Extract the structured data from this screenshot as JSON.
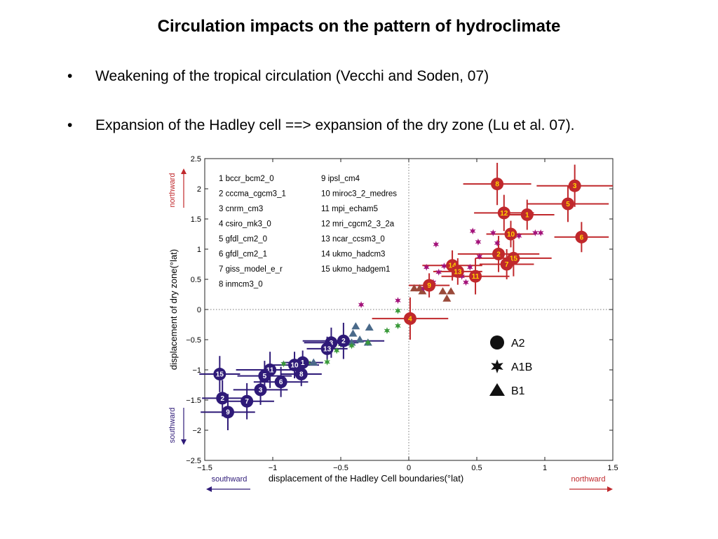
{
  "slide": {
    "title": "Circulation impacts on the pattern of hydroclimate",
    "bullets": [
      "Weakening of the tropical circulation (Vecchi and Soden, 07)",
      "Expansion of the Hadley cell ==> expansion of the dry zone (Lu et al. 07)."
    ],
    "bullet_glyph": "•"
  },
  "chart_data": {
    "type": "scatter",
    "title": "",
    "xlabel": "displacement of the Hadley Cell boundaries(°lat)",
    "ylabel": "displacement of dry zone(°lat)",
    "xlim": [
      -1.5,
      1.5
    ],
    "ylim": [
      -2.5,
      2.5
    ],
    "xticks": [
      -1.5,
      -1,
      -0.5,
      0,
      0.5,
      1,
      1.5
    ],
    "xtick_labels": [
      "−1.5",
      "−1",
      "−0.5",
      "0",
      "0.5",
      "1",
      "1.5"
    ],
    "yticks": [
      -2.5,
      -2,
      -1.5,
      -1,
      -0.5,
      0,
      0.5,
      1,
      1.5,
      2,
      2.5
    ],
    "ytick_labels": [
      "−2.5",
      "−2",
      "−1.5",
      "−1",
      "−0.5",
      "0",
      "0.5",
      "1",
      "1.5",
      "2",
      "2.5"
    ],
    "grid": false,
    "zero_lines": "dotted",
    "direction_labels": {
      "x_negative": "southward",
      "x_positive": "northward",
      "y_positive": "northward",
      "y_negative": "southward"
    },
    "colors": {
      "northward": "#c0282c",
      "southward": "#2e1a78",
      "a1b_north": "#a3127a",
      "a1b_south": "#3a9a3a",
      "b1_north": "#9a4a3a",
      "b1_south": "#4a6a8a",
      "label_north": "#ffd400",
      "label_south": "#ffffff"
    },
    "model_list": [
      "1 bccr_bcm2_0",
      "2 cccma_cgcm3_1",
      "3 cnrm_cm3",
      "4 csiro_mk3_0",
      "5 gfdl_cm2_0",
      "6 gfdl_cm2_1",
      "7 giss_model_e_r",
      "8 inmcm3_0",
      "9 ipsl_cm4",
      "10 miroc3_2_medres",
      "11 mpi_echam5",
      "12 mri_cgcm2_3_2a",
      "13 ncar_ccsm3_0",
      "14 ukmo_hadcm3",
      "15 ukmo_hadgem1"
    ],
    "legend": {
      "placement": "lower-right",
      "entries": [
        {
          "label": "A2",
          "marker": "circle"
        },
        {
          "label": "A1B",
          "marker": "star"
        },
        {
          "label": "B1",
          "marker": "triangle"
        }
      ]
    },
    "series": [
      {
        "name": "A2",
        "marker": "circle",
        "points": [
          {
            "id": "8",
            "x": 0.65,
            "y": 2.08,
            "xerr": 0.25,
            "yerr": 0.35,
            "dir": "north"
          },
          {
            "id": "3",
            "x": 1.22,
            "y": 2.05,
            "xerr": 0.28,
            "yerr": 0.35,
            "dir": "north"
          },
          {
            "id": "5",
            "x": 1.17,
            "y": 1.75,
            "xerr": 0.3,
            "yerr": 0.3,
            "dir": "north"
          },
          {
            "id": "12",
            "x": 0.7,
            "y": 1.6,
            "xerr": 0.22,
            "yerr": 0.3,
            "dir": "north"
          },
          {
            "id": "1",
            "x": 0.87,
            "y": 1.57,
            "xerr": 0.2,
            "yerr": 0.25,
            "dir": "north"
          },
          {
            "id": "6",
            "x": 1.27,
            "y": 1.2,
            "xerr": 0.2,
            "yerr": 0.25,
            "dir": "north"
          },
          {
            "id": "10",
            "x": 0.75,
            "y": 1.25,
            "xerr": 0.18,
            "yerr": 0.22,
            "dir": "north"
          },
          {
            "id": "2",
            "x": 0.66,
            "y": 0.92,
            "xerr": 0.3,
            "yerr": 0.3,
            "dir": "north"
          },
          {
            "id": "15",
            "x": 0.77,
            "y": 0.85,
            "xerr": 0.28,
            "yerr": 0.3,
            "dir": "north"
          },
          {
            "id": "7",
            "x": 0.72,
            "y": 0.75,
            "xerr": 0.2,
            "yerr": 0.25,
            "dir": "north"
          },
          {
            "id": "14",
            "x": 0.32,
            "y": 0.73,
            "xerr": 0.22,
            "yerr": 0.25,
            "dir": "north"
          },
          {
            "id": "13",
            "x": 0.36,
            "y": 0.63,
            "xerr": 0.18,
            "yerr": 0.22,
            "dir": "north"
          },
          {
            "id": "11",
            "x": 0.49,
            "y": 0.55,
            "xerr": 0.25,
            "yerr": 0.3,
            "dir": "north"
          },
          {
            "id": "9",
            "x": 0.15,
            "y": 0.4,
            "xerr": 0.15,
            "yerr": 0.2,
            "dir": "north"
          },
          {
            "id": "4",
            "x": 0.01,
            "y": -0.15,
            "xerr": 0.28,
            "yerr": 0.35,
            "dir": "north"
          },
          {
            "id": "2",
            "x": -0.48,
            "y": -0.52,
            "xerr": 0.3,
            "yerr": 0.3,
            "dir": "south"
          },
          {
            "id": "3",
            "x": -0.57,
            "y": -0.55,
            "xerr": 0.2,
            "yerr": 0.25,
            "dir": "south"
          },
          {
            "id": "13",
            "x": -0.6,
            "y": -0.65,
            "xerr": 0.15,
            "yerr": 0.2,
            "dir": "south"
          },
          {
            "id": "1",
            "x": -0.78,
            "y": -0.88,
            "xerr": 0.15,
            "yerr": 0.2,
            "dir": "south"
          },
          {
            "id": "10",
            "x": -0.84,
            "y": -0.92,
            "xerr": 0.18,
            "yerr": 0.22,
            "dir": "south"
          },
          {
            "id": "8",
            "x": -0.79,
            "y": -1.07,
            "xerr": 0.15,
            "yerr": 0.2,
            "dir": "south"
          },
          {
            "id": "11",
            "x": -1.02,
            "y": -1.0,
            "xerr": 0.25,
            "yerr": 0.3,
            "dir": "south"
          },
          {
            "id": "5",
            "x": -1.06,
            "y": -1.1,
            "xerr": 0.2,
            "yerr": 0.25,
            "dir": "south"
          },
          {
            "id": "6",
            "x": -0.94,
            "y": -1.2,
            "xerr": 0.2,
            "yerr": 0.25,
            "dir": "south"
          },
          {
            "id": "3",
            "x": -1.09,
            "y": -1.33,
            "xerr": 0.2,
            "yerr": 0.25,
            "dir": "south"
          },
          {
            "id": "15",
            "x": -1.39,
            "y": -1.07,
            "xerr": 0.15,
            "yerr": 0.3,
            "dir": "south"
          },
          {
            "id": "2",
            "x": -1.37,
            "y": -1.47,
            "xerr": 0.15,
            "yerr": 0.3,
            "dir": "south"
          },
          {
            "id": "7",
            "x": -1.19,
            "y": -1.52,
            "xerr": 0.2,
            "yerr": 0.3,
            "dir": "south"
          },
          {
            "id": "9",
            "x": -1.33,
            "y": -1.7,
            "xerr": 0.2,
            "yerr": 0.3,
            "dir": "south"
          }
        ]
      },
      {
        "name": "A1B",
        "marker": "star",
        "points": [
          {
            "x": 0.93,
            "y": 1.27,
            "dir": "north"
          },
          {
            "x": 0.97,
            "y": 1.27,
            "dir": "north"
          },
          {
            "x": 0.62,
            "y": 1.27,
            "dir": "north"
          },
          {
            "x": 0.47,
            "y": 1.3,
            "dir": "north"
          },
          {
            "x": 0.81,
            "y": 1.22,
            "dir": "north"
          },
          {
            "x": 0.75,
            "y": 1.2,
            "dir": "north"
          },
          {
            "x": 0.51,
            "y": 1.12,
            "dir": "north"
          },
          {
            "x": 0.2,
            "y": 1.08,
            "dir": "north"
          },
          {
            "x": 0.65,
            "y": 1.1,
            "dir": "north"
          },
          {
            "x": 0.52,
            "y": 0.88,
            "dir": "north"
          },
          {
            "x": 0.26,
            "y": 0.72,
            "dir": "north"
          },
          {
            "x": 0.13,
            "y": 0.7,
            "dir": "north"
          },
          {
            "x": 0.45,
            "y": 0.7,
            "dir": "north"
          },
          {
            "x": 0.22,
            "y": 0.62,
            "dir": "north"
          },
          {
            "x": 0.39,
            "y": 0.55,
            "dir": "north"
          },
          {
            "x": 0.42,
            "y": 0.45,
            "dir": "north"
          },
          {
            "x": 0.11,
            "y": 0.35,
            "dir": "north"
          },
          {
            "x": 0.18,
            "y": 0.45,
            "dir": "north"
          },
          {
            "x": -0.08,
            "y": 0.15,
            "dir": "north"
          },
          {
            "x": -0.35,
            "y": 0.08,
            "dir": "north"
          },
          {
            "x": -0.08,
            "y": -0.02,
            "dir": "south"
          },
          {
            "x": -0.08,
            "y": -0.27,
            "dir": "south"
          },
          {
            "x": -0.16,
            "y": -0.35,
            "dir": "south"
          },
          {
            "x": -0.3,
            "y": -0.55,
            "dir": "south"
          },
          {
            "x": -0.42,
            "y": -0.6,
            "dir": "south"
          },
          {
            "x": -0.53,
            "y": -0.68,
            "dir": "south"
          },
          {
            "x": -0.5,
            "y": -0.58,
            "dir": "south"
          },
          {
            "x": -0.6,
            "y": -0.87,
            "dir": "south"
          },
          {
            "x": -0.92,
            "y": -0.9,
            "dir": "south"
          },
          {
            "x": -0.74,
            "y": -0.88,
            "dir": "south"
          }
        ]
      },
      {
        "name": "B1",
        "marker": "triangle",
        "points": [
          {
            "x": 0.04,
            "y": 0.35,
            "dir": "north"
          },
          {
            "x": 0.08,
            "y": 0.35,
            "dir": "north"
          },
          {
            "x": 0.1,
            "y": 0.3,
            "dir": "north"
          },
          {
            "x": 0.25,
            "y": 0.3,
            "dir": "north"
          },
          {
            "x": 0.31,
            "y": 0.3,
            "dir": "north"
          },
          {
            "x": 0.28,
            "y": 0.18,
            "dir": "north"
          },
          {
            "x": -0.39,
            "y": -0.28,
            "dir": "south"
          },
          {
            "x": -0.29,
            "y": -0.3,
            "dir": "south"
          },
          {
            "x": -0.41,
            "y": -0.4,
            "dir": "south"
          },
          {
            "x": -0.3,
            "y": -0.55,
            "dir": "south"
          },
          {
            "x": -0.42,
            "y": -0.55,
            "dir": "south"
          },
          {
            "x": -0.36,
            "y": -0.5,
            "dir": "south"
          },
          {
            "x": -0.7,
            "y": -0.88,
            "dir": "south"
          }
        ]
      }
    ]
  }
}
